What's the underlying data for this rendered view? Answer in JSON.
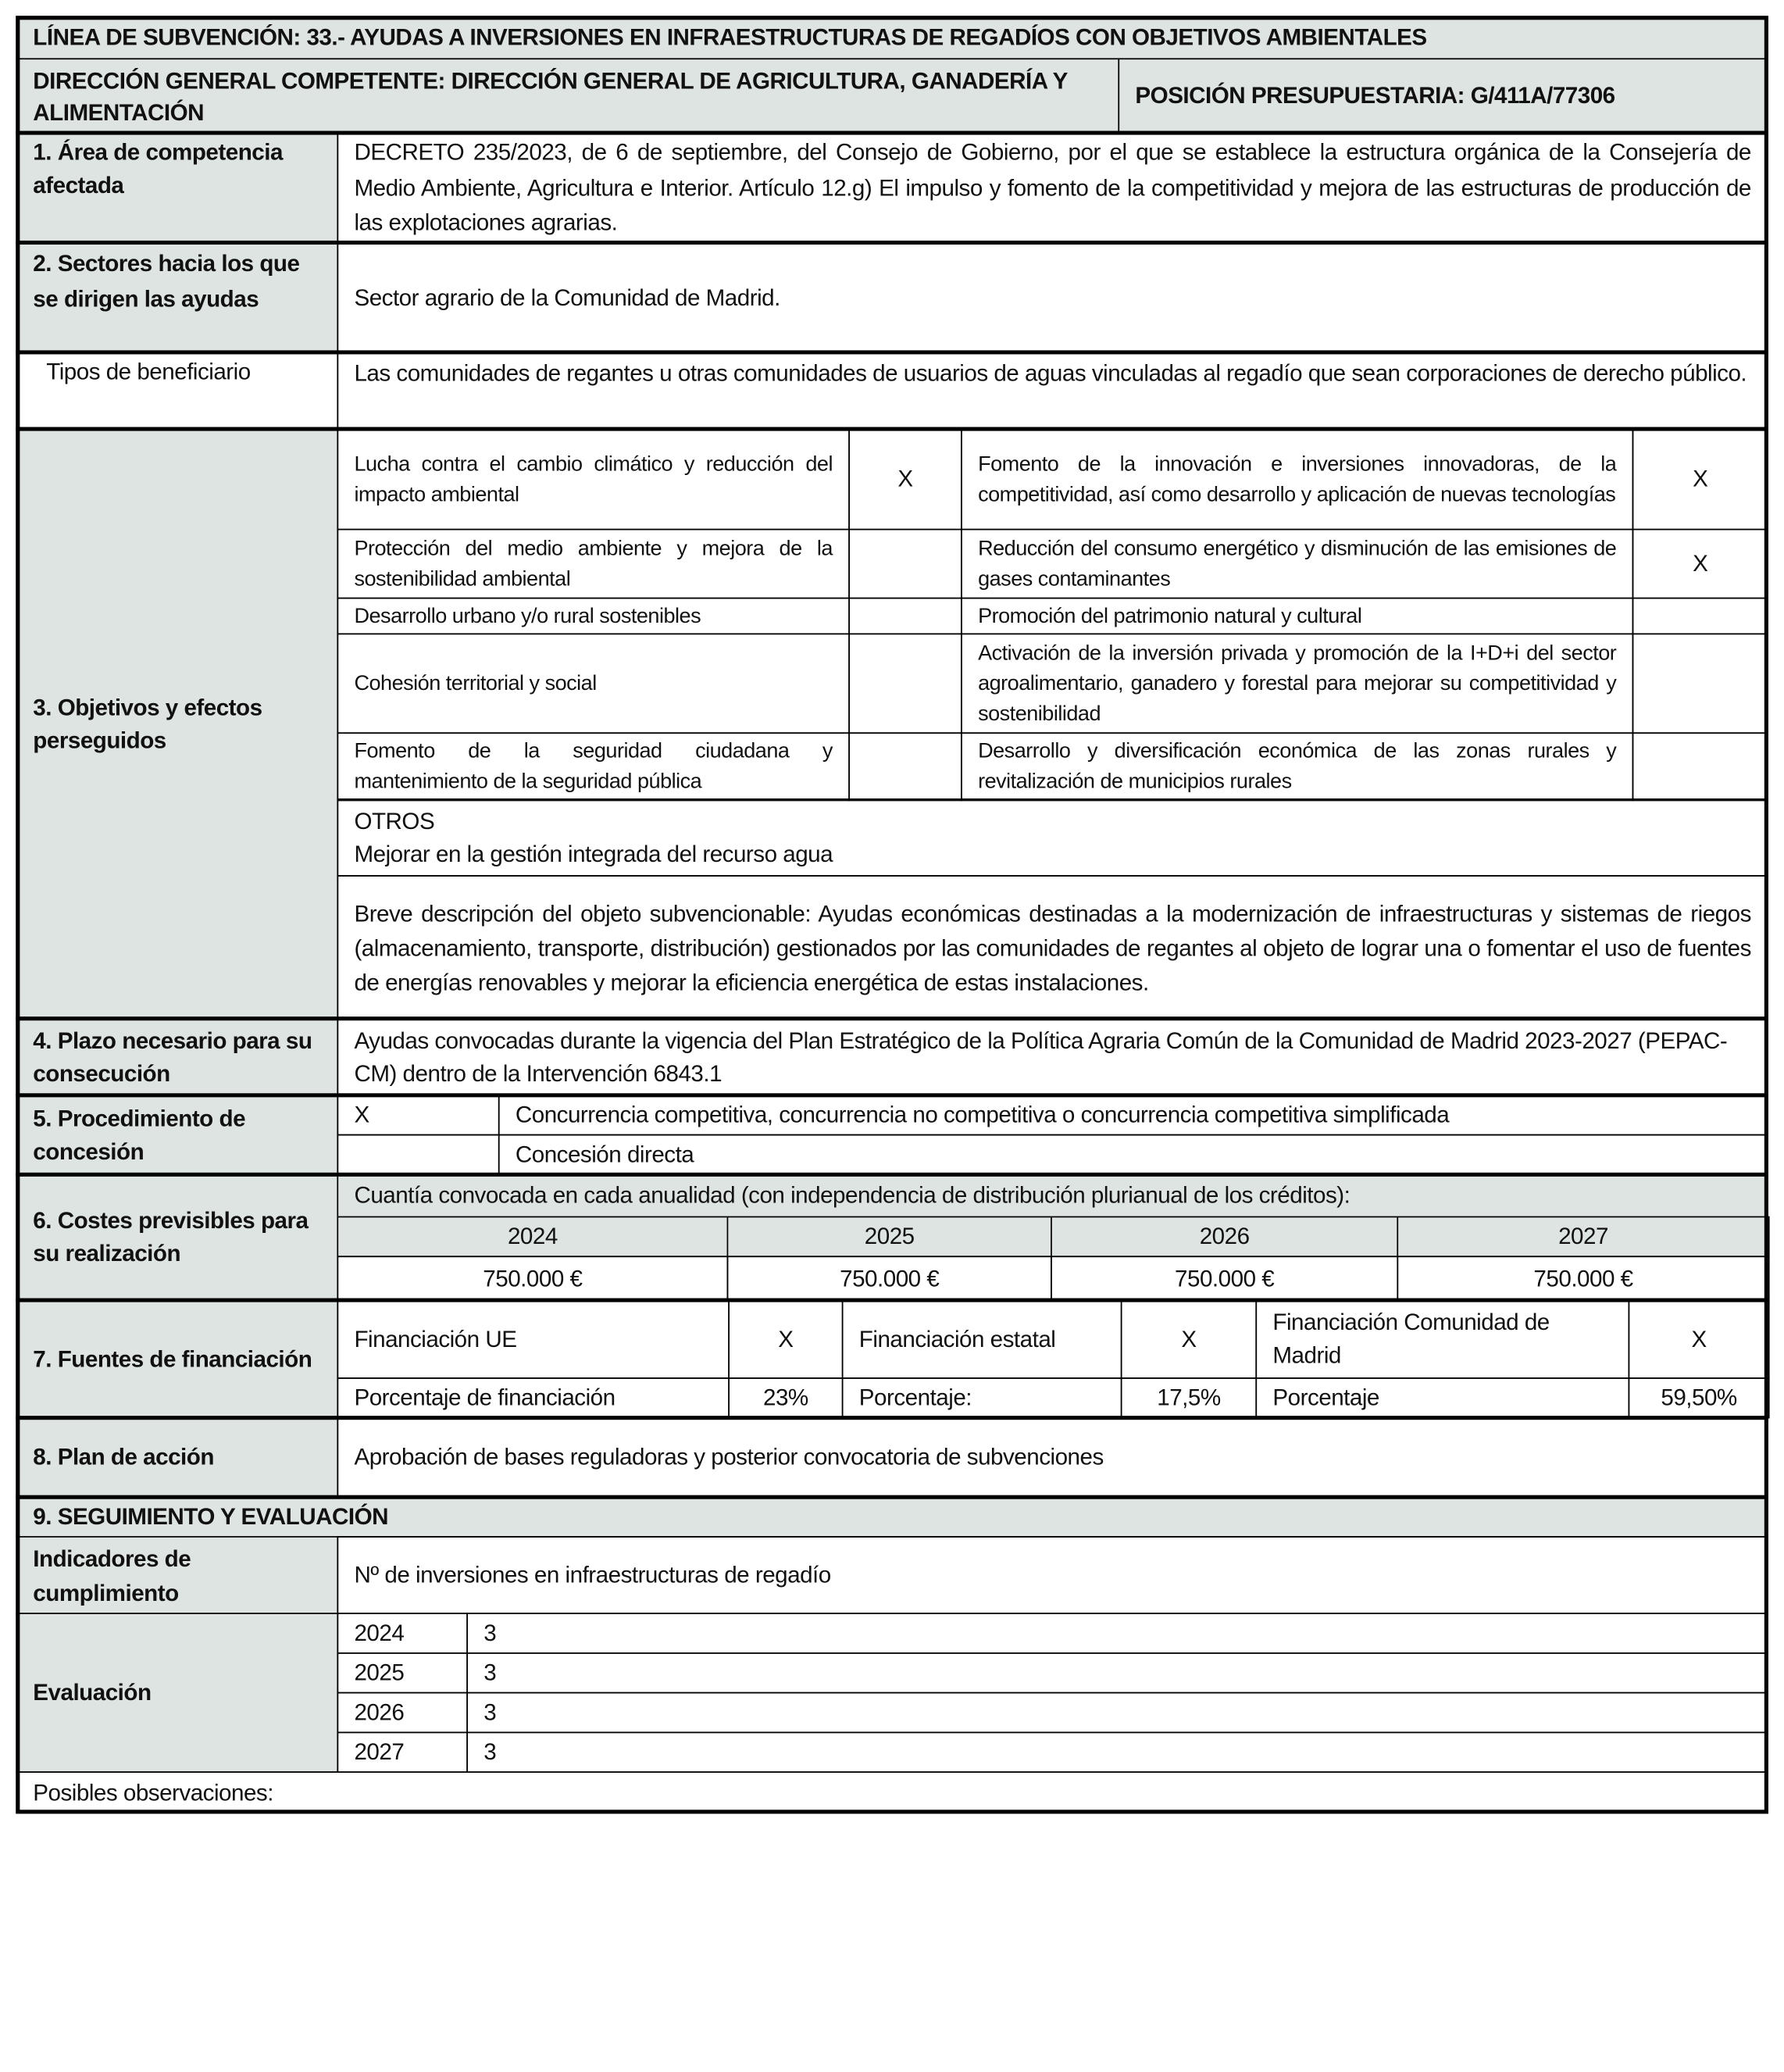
{
  "header": {
    "title": "LÍNEA DE SUBVENCIÓN: 33.- AYUDAS A INVERSIONES EN INFRAESTRUCTURAS DE REGADÍOS CON OBJETIVOS AMBIENTALES",
    "direccion": "DIRECCIÓN GENERAL COMPETENTE: DIRECCIÓN GENERAL DE AGRICULTURA, GANADERÍA Y ALIMENTACIÓN",
    "posicion": "POSICIÓN PRESUPUESTARIA: G/411A/77306"
  },
  "s1": {
    "label": "1. Área de competencia afectada",
    "value": "DECRETO 235/2023, de 6 de septiembre, del Consejo de Gobierno, por el que se establece la estructura orgánica de la Consejería de Medio Ambiente, Agricultura e Interior. Artículo 12.g) El impulso y fomento de la competitividad y mejora de las estructuras de producción de las explotaciones agrarias."
  },
  "s2": {
    "label": "2. Sectores hacia los que se dirigen las ayudas",
    "value": "Sector agrario de la Comunidad de Madrid."
  },
  "tipos": {
    "label": "Tipos de beneficiario",
    "value": "Las comunidades de regantes u otras comunidades de usuarios de aguas vinculadas al regadío que sean corporaciones de derecho público."
  },
  "s3": {
    "label": "3. Objetivos y efectos perseguidos",
    "rows": [
      {
        "left": "Lucha contra el cambio climático y reducción del impacto ambiental",
        "left_mark": "X",
        "right": "Fomento de la innovación e inversiones innovadoras, de la competitividad, así como desarrollo y aplicación de nuevas tecnologías",
        "right_mark": "X"
      },
      {
        "left": "Protección del medio ambiente y mejora de la sostenibilidad ambiental",
        "left_mark": "",
        "right": "Reducción del consumo energético y disminución de las emisiones de gases contaminantes",
        "right_mark": "X"
      },
      {
        "left": "Desarrollo urbano y/o rural sostenibles",
        "left_mark": "",
        "right": "Promoción del patrimonio natural y cultural",
        "right_mark": ""
      },
      {
        "left": "Cohesión territorial y social",
        "left_mark": "",
        "right": "Activación de la inversión privada y promoción de la I+D+i del sector agroalimentario, ganadero y forestal para mejorar su competitividad y sostenibilidad",
        "right_mark": ""
      },
      {
        "left": "Fomento de la seguridad ciudadana y mantenimiento de la seguridad pública",
        "left_mark": "",
        "right": "Desarrollo y diversificación económica de las zonas rurales y revitalización de municipios rurales",
        "right_mark": ""
      }
    ],
    "otros_label": "OTROS",
    "otros_value": "Mejorar en la gestión integrada del recurso agua",
    "breve": "Breve descripción del objeto subvencionable: Ayudas económicas destinadas a la modernización de infraestructuras y sistemas de riegos (almacenamiento, transporte, distribución) gestionados por las comunidades de regantes al objeto de lograr una o fomentar el uso de fuentes de energías renovables y mejorar la eficiencia energética de estas instalaciones."
  },
  "s4": {
    "label": "4. Plazo necesario para su consecución",
    "value": "Ayudas convocadas durante la vigencia del Plan Estratégico de la Política Agraria Común de la Comunidad de Madrid 2023-2027 (PEPAC-CM) dentro de la Intervención 6843.1"
  },
  "s5": {
    "label": "5. Procedimiento de concesión",
    "options": [
      {
        "mark": "X",
        "text": "Concurrencia competitiva, concurrencia no competitiva o concurrencia competitiva simplificada"
      },
      {
        "mark": "",
        "text": "Concesión directa"
      }
    ]
  },
  "s6": {
    "label": "6. Costes previsibles para su realización",
    "caption": "Cuantía convocada en cada anualidad (con independencia de distribución plurianual de los créditos):",
    "years": [
      "2024",
      "2025",
      "2026",
      "2027"
    ],
    "amounts": [
      "750.000 €",
      "750.000 €",
      "750.000 €",
      "750.000 €"
    ]
  },
  "s7": {
    "label": "7. Fuentes de financiación",
    "sources": [
      {
        "name": "Financiación UE",
        "mark": "X",
        "pct_label": "Porcentaje de financiación",
        "pct": "23%"
      },
      {
        "name": "Financiación estatal",
        "mark": "X",
        "pct_label": "Porcentaje:",
        "pct": "17,5%"
      },
      {
        "name": "Financiación Comunidad de Madrid",
        "mark": "X",
        "pct_label": "Porcentaje",
        "pct": "59,50%"
      }
    ]
  },
  "s8": {
    "label": "8. Plan de acción",
    "value": "Aprobación de bases reguladoras y posterior convocatoria de subvenciones"
  },
  "s9": {
    "title": "9. SEGUIMIENTO Y EVALUACIÓN",
    "ind_label": "Indicadores de cumplimiento",
    "ind_value": "Nº de inversiones en infraestructuras de regadío",
    "eval_label": "Evaluación",
    "eval": [
      {
        "year": "2024",
        "value": "3"
      },
      {
        "year": "2025",
        "value": "3"
      },
      {
        "year": "2026",
        "value": "3"
      },
      {
        "year": "2027",
        "value": "3"
      }
    ]
  },
  "observaciones": "Posibles observaciones:"
}
